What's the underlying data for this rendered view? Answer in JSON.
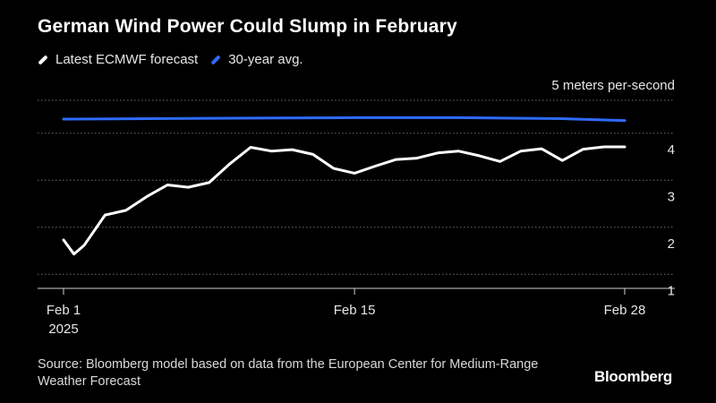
{
  "chart_data": {
    "type": "line",
    "title": "German Wind Power Could Slump in February",
    "ylabel": "5 meters per-second",
    "ylim": [
      0.7,
      4.7
    ],
    "yticks": [
      1,
      2,
      3,
      4
    ],
    "xticks": [
      {
        "day": 1,
        "label": "Feb 1",
        "sublabel": "2025"
      },
      {
        "day": 15,
        "label": "Feb 15",
        "sublabel": ""
      },
      {
        "day": 28,
        "label": "Feb 28",
        "sublabel": ""
      }
    ],
    "series": [
      {
        "name": "Latest ECMWF forecast",
        "color": "#ffffff",
        "x": [
          1,
          1.5,
          2,
          3,
          4,
          5,
          6,
          7,
          8,
          9,
          10,
          11,
          12,
          13,
          14,
          15,
          16,
          17,
          18,
          19,
          20,
          21,
          22,
          23,
          24,
          25,
          26,
          27,
          28
        ],
        "values": [
          1.73,
          1.43,
          1.62,
          2.26,
          2.36,
          2.65,
          2.9,
          2.85,
          2.95,
          3.35,
          3.7,
          3.62,
          3.65,
          3.55,
          3.25,
          3.15,
          3.3,
          3.44,
          3.47,
          3.58,
          3.62,
          3.52,
          3.4,
          3.62,
          3.67,
          3.42,
          3.66,
          3.71,
          3.71
        ]
      },
      {
        "name": "30-year avg.",
        "color": "#2f6bff",
        "x": [
          1,
          5,
          10,
          15,
          20,
          25,
          28
        ],
        "values": [
          4.3,
          4.31,
          4.32,
          4.33,
          4.33,
          4.31,
          4.27
        ]
      }
    ],
    "legend_position": "top-left"
  },
  "footer": {
    "source": "Source: Bloomberg model based on data from the European Center for Medium-Range Weather Forecast",
    "logo": "Bloomberg"
  }
}
